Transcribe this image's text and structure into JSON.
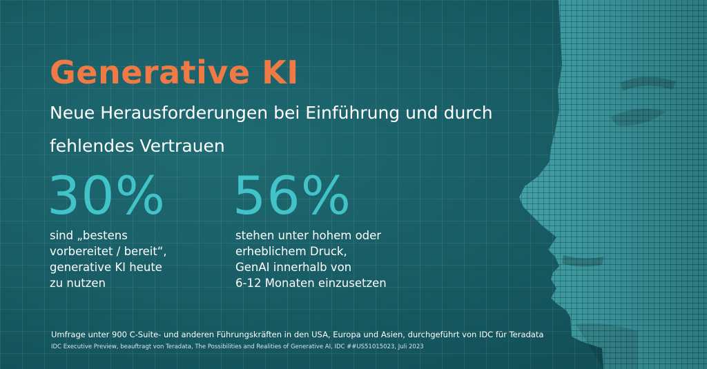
{
  "headline": "Generative KI",
  "subheadline": "Neue Herausforderungen bei Einführung und durch fehlendes Vertrauen",
  "stats": [
    {
      "value": "30%",
      "text": "sind „bestens\nvorbereitet / bereit“,\ngenerative KI heute\nzu nutzen"
    },
    {
      "value": "56%",
      "text": "stehen unter hohem oder\nerheblichem Druck,\nGenAI innerhalb von\n6-12 Monaten einzusetzen"
    }
  ],
  "footnote": "Umfrage unter 900 C-Suite- und anderen Führungskräften in den USA, Europa und Asien, durchgeführt von IDC für Teradata",
  "citation": "IDC Executive Preview, beauftragt von Teradata, The Possibilities and Realities of Generative AI, IDC ##US51015023, Juli 2023",
  "colors": {
    "background": "#175a62",
    "headline": "#f07a45",
    "stat_value": "#41c3c8",
    "text": "#ffffff"
  }
}
